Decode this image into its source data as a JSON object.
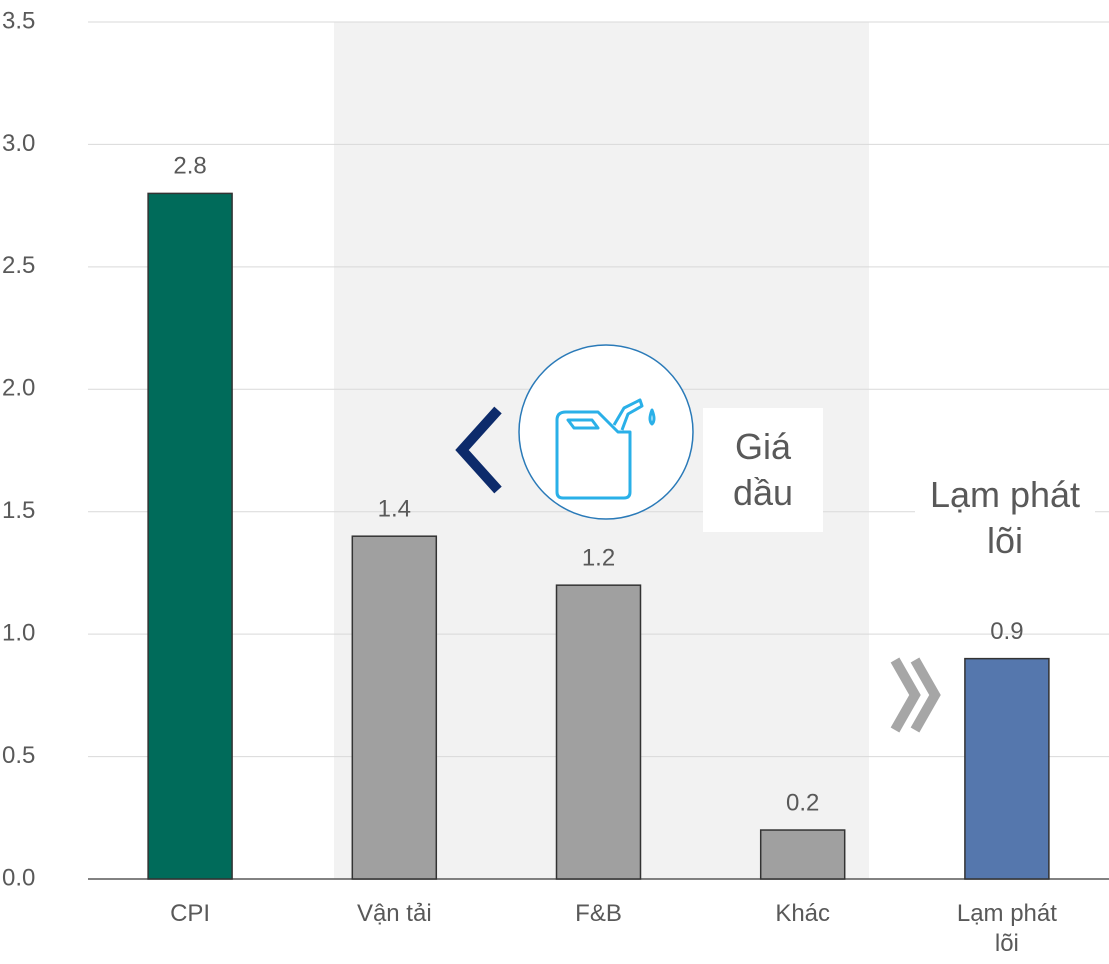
{
  "chart_data": {
    "type": "bar",
    "categories": [
      "CPI",
      "Vận tải",
      "F&B",
      "Khác",
      "Lạm phát lõi"
    ],
    "values": [
      2.8,
      1.4,
      1.2,
      0.2,
      0.9
    ],
    "colors": [
      "#006b5a",
      "#a0a0a0",
      "#a0a0a0",
      "#a0a0a0",
      "#5577ad"
    ],
    "ylim": [
      0,
      3.5
    ],
    "yticks": [
      {
        "value": 0,
        "label": "0.0"
      },
      0.5,
      {
        "value": 1,
        "label": "1.0"
      },
      1.5,
      {
        "value": 2,
        "label": "2.0"
      },
      2.5,
      {
        "value": 3,
        "label": "3.0"
      },
      3.5
    ],
    "grid": true,
    "annotations": [
      "Giá dầu",
      "Lạm phát lõi"
    ]
  }
}
